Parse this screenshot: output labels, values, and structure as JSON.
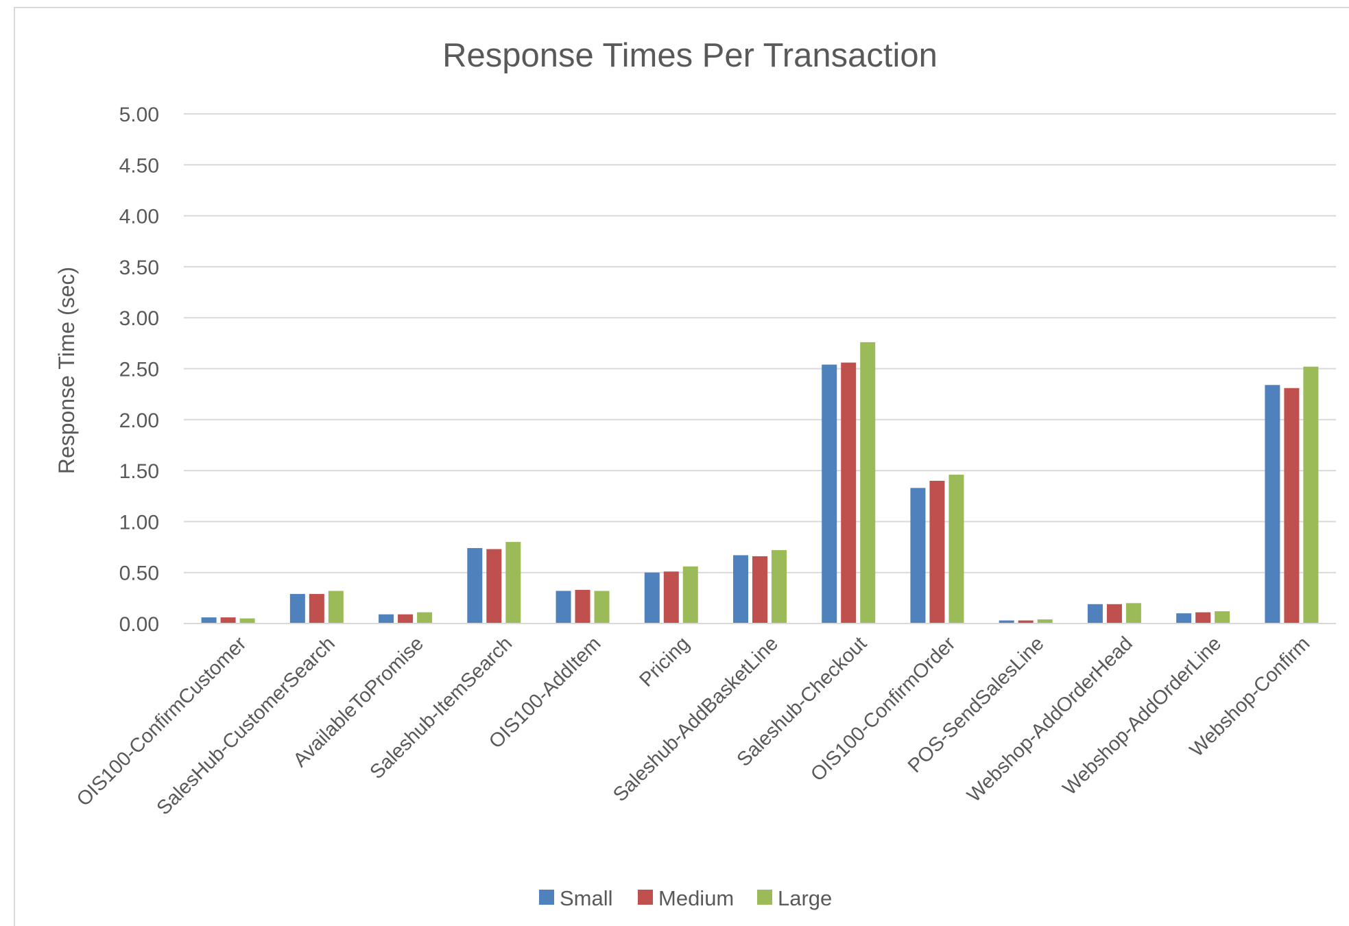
{
  "chart_data": {
    "type": "bar",
    "title": "Response Times Per Transaction",
    "ylabel": "Response Time  (sec)",
    "xlabel": "",
    "ylim": [
      0,
      5
    ],
    "ytick_step": 0.5,
    "yticks": [
      "0.00",
      "0.50",
      "1.00",
      "1.50",
      "2.00",
      "2.50",
      "3.00",
      "3.50",
      "4.00",
      "4.50",
      "5.00"
    ],
    "grid": true,
    "legend_position": "bottom",
    "categories": [
      "OIS100-ConfirmCustomer",
      "SalesHub-CustomerSearch",
      "AvailableToPromise",
      "Saleshub-ItemSearch",
      "OIS100-AddItem",
      "Pricing",
      "Saleshub-AddBasketLine",
      "Saleshub-Checkout",
      "OIS100-ConfirmOrder",
      "POS-SendSalesLine",
      "Webshop-AddOrderHead",
      "Webshop-AddOrderLine",
      "Webshop-Confirm"
    ],
    "series": [
      {
        "name": "Small",
        "color": "#4f81bd",
        "values": [
          0.06,
          0.29,
          0.09,
          0.74,
          0.32,
          0.5,
          0.67,
          2.54,
          1.33,
          0.03,
          0.19,
          0.1,
          2.34
        ]
      },
      {
        "name": "Medium",
        "color": "#c0504d",
        "values": [
          0.06,
          0.29,
          0.09,
          0.73,
          0.33,
          0.51,
          0.66,
          2.56,
          1.4,
          0.03,
          0.19,
          0.11,
          2.31
        ]
      },
      {
        "name": "Large",
        "color": "#9bbb59",
        "values": [
          0.05,
          0.32,
          0.11,
          0.8,
          0.32,
          0.56,
          0.72,
          2.76,
          1.46,
          0.04,
          0.2,
          0.12,
          2.52
        ]
      }
    ]
  }
}
